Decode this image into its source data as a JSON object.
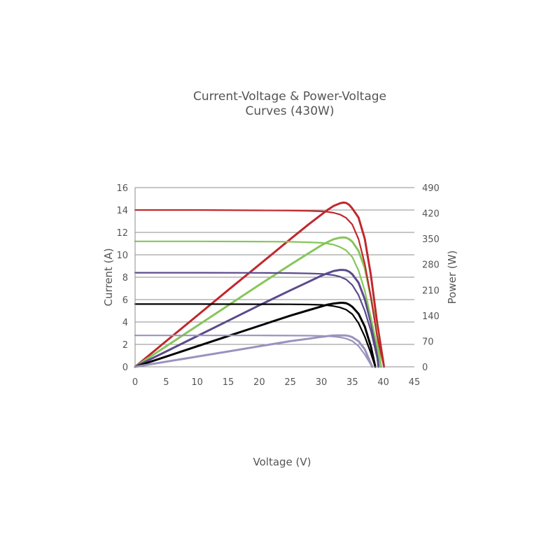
{
  "chart_data": {
    "type": "line",
    "title_lines": [
      "Current-Voltage & Power-Voltage",
      "Curves (430W)"
    ],
    "xlabel": "Voltage (V)",
    "ylabel": "Current (A)",
    "y2label": "Power (W)",
    "xlim": [
      0,
      45
    ],
    "ylim": [
      0,
      16
    ],
    "y2lim": [
      0,
      490
    ],
    "x_ticks": [
      "0",
      "5",
      "10",
      "15",
      "20",
      "25",
      "30",
      "35",
      "40",
      "45"
    ],
    "y_ticks": [
      "0",
      "2",
      "4",
      "6",
      "8",
      "10",
      "12",
      "14",
      "16"
    ],
    "y2_ticks": [
      "0",
      "70",
      "140",
      "210",
      "280",
      "350",
      "420",
      "490"
    ],
    "grid": "horizontal",
    "series": [
      {
        "color": "#c0282d",
        "axis": "current",
        "x": [
          0,
          10,
          20,
          25,
          28,
          30,
          31,
          32,
          33,
          34,
          35,
          36,
          37,
          38,
          39,
          40.1
        ],
        "y": [
          14.0,
          14.0,
          13.97,
          13.95,
          13.92,
          13.88,
          13.84,
          13.75,
          13.6,
          13.3,
          12.7,
          11.4,
          9.2,
          6.2,
          2.7,
          0
        ]
      },
      {
        "color": "#c0282d",
        "axis": "power",
        "x": [
          0,
          5,
          10,
          15,
          20,
          25,
          28,
          30,
          31,
          32,
          33,
          33.5,
          34,
          34.5,
          35,
          36,
          37,
          38,
          39,
          40.1
        ],
        "y": [
          0,
          70,
          140,
          210,
          279,
          349,
          390,
          416,
          429,
          440,
          447,
          449,
          448,
          443,
          433,
          408,
          350,
          250,
          120,
          0
        ]
      },
      {
        "color": "#86c65a",
        "axis": "current",
        "x": [
          0,
          10,
          20,
          25,
          28,
          30,
          31,
          32,
          33,
          34,
          35,
          36,
          37,
          38,
          39,
          39.6
        ],
        "y": [
          11.2,
          11.2,
          11.18,
          11.16,
          11.12,
          11.07,
          11.0,
          10.9,
          10.7,
          10.4,
          9.8,
          8.6,
          6.8,
          4.4,
          1.8,
          0
        ]
      },
      {
        "color": "#86c65a",
        "axis": "power",
        "x": [
          0,
          5,
          10,
          15,
          20,
          25,
          28,
          30,
          31,
          32,
          33,
          33.5,
          34,
          34.5,
          35,
          36,
          37,
          38,
          39,
          39.6
        ],
        "y": [
          0,
          56,
          112,
          168,
          224,
          279,
          311,
          332,
          341,
          349,
          353,
          354,
          353,
          349,
          342,
          317,
          270,
          190,
          90,
          0
        ]
      },
      {
        "color": "#5b4a8b",
        "axis": "current",
        "x": [
          0,
          10,
          20,
          25,
          28,
          30,
          31,
          32,
          33,
          34,
          35,
          36,
          37,
          38,
          39,
          39.2
        ],
        "y": [
          8.4,
          8.4,
          8.39,
          8.37,
          8.34,
          8.3,
          8.25,
          8.18,
          8.05,
          7.8,
          7.3,
          6.4,
          5.0,
          3.2,
          0.8,
          0
        ]
      },
      {
        "color": "#5b4a8b",
        "axis": "power",
        "x": [
          0,
          5,
          10,
          15,
          20,
          25,
          28,
          30,
          31,
          32,
          33,
          33.5,
          34,
          34.5,
          35,
          36,
          37,
          38,
          39,
          39.2
        ],
        "y": [
          0,
          42,
          84,
          126,
          168,
          209,
          233,
          249,
          256,
          262,
          265,
          265,
          264,
          260,
          253,
          230,
          185,
          120,
          40,
          0
        ]
      },
      {
        "color": "#000000",
        "axis": "current",
        "x": [
          0,
          10,
          20,
          25,
          28,
          30,
          31,
          32,
          33,
          34,
          35,
          36,
          37,
          38,
          38.7
        ],
        "y": [
          5.6,
          5.6,
          5.59,
          5.58,
          5.56,
          5.53,
          5.49,
          5.42,
          5.3,
          5.1,
          4.7,
          3.9,
          2.7,
          1.2,
          0
        ]
      },
      {
        "color": "#000000",
        "axis": "power",
        "x": [
          0,
          5,
          10,
          15,
          20,
          25,
          28,
          30,
          31,
          32,
          33,
          33.5,
          34,
          34.5,
          35,
          36,
          37,
          38,
          38.7
        ],
        "y": [
          0,
          28,
          56,
          84,
          112,
          140,
          155,
          165,
          170,
          173,
          175,
          175,
          174,
          170,
          164,
          145,
          110,
          55,
          0
        ]
      },
      {
        "color": "#9b92bd",
        "axis": "current",
        "x": [
          0,
          10,
          20,
          25,
          28,
          30,
          31,
          32,
          33,
          34,
          35,
          36,
          37,
          38.2
        ],
        "y": [
          2.8,
          2.8,
          2.8,
          2.79,
          2.78,
          2.76,
          2.74,
          2.7,
          2.64,
          2.52,
          2.3,
          1.85,
          1.1,
          0
        ]
      },
      {
        "color": "#9b92bd",
        "axis": "power",
        "x": [
          0,
          5,
          10,
          15,
          20,
          25,
          28,
          30,
          31,
          32,
          33,
          33.5,
          34,
          34.5,
          35,
          36,
          37,
          38.2
        ],
        "y": [
          0,
          14,
          28,
          42,
          56,
          70,
          77,
          82,
          84,
          85.5,
          86,
          86,
          85.5,
          84,
          81,
          70,
          48,
          0
        ]
      }
    ]
  }
}
